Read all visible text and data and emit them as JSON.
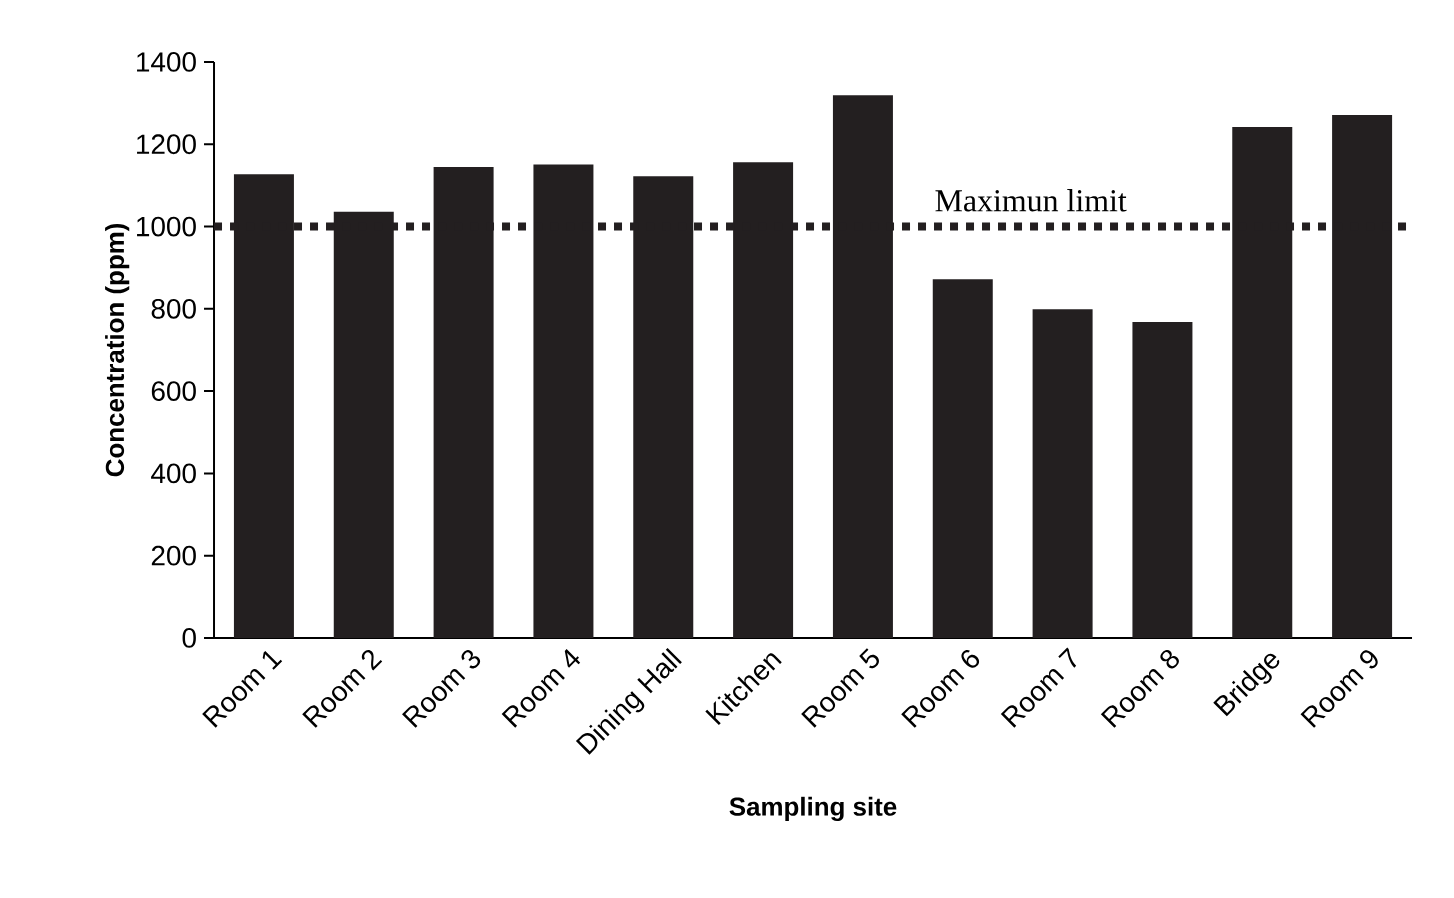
{
  "chart_data": {
    "type": "bar",
    "xlabel": "Sampling site",
    "ylabel": "Concentration (ppm)",
    "categories": [
      "Room 1",
      "Room 2",
      "Room 3",
      "Room 4",
      "Dining Hall",
      "Kitchen",
      "Room 5",
      "Room 6",
      "Room 7",
      "Room 8",
      "Bridge",
      "Room 9"
    ],
    "values": [
      1127,
      1036,
      1145,
      1151,
      1122,
      1156,
      1319,
      872,
      799,
      768,
      1242,
      1271
    ],
    "color": "#231f20",
    "ylim": [
      0,
      1400
    ],
    "yticks": [
      0,
      200,
      400,
      600,
      800,
      1000,
      1200,
      1400
    ],
    "ref_lines": [
      {
        "axis": "y",
        "value": 1000,
        "label": "Maximun limit",
        "color": "#231f20",
        "line_style": "dotted"
      }
    ],
    "marker": "none"
  }
}
